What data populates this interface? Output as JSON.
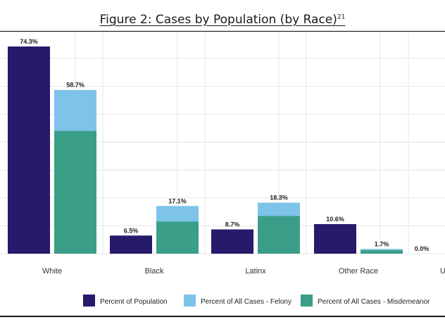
{
  "title": "Figure 2: Cases by Population (by Race)",
  "title_footnote": "21",
  "chart_data": {
    "type": "bar",
    "layout": "grouped-with-stacked-overlay",
    "grid": true,
    "legend_position": "bottom",
    "ylim": [
      0,
      80
    ],
    "categories": [
      "White",
      "Black",
      "Latinx",
      "Other Race",
      "Un"
    ],
    "series": [
      {
        "name": "Percent of Population",
        "color": "#261a6b",
        "values": [
          74.3,
          6.5,
          8.7,
          10.6,
          0.0
        ],
        "labels": [
          "74.3%",
          "6.5%",
          "8.7%",
          "10.6%",
          "0.0%"
        ]
      },
      {
        "name": "Percent of All Cases - Felony",
        "color": "#7dc3ea",
        "values": [
          58.7,
          17.1,
          18.3,
          1.7,
          null
        ],
        "labels": [
          "58.7%",
          "17.1%",
          "18.3%",
          "1.7%",
          ""
        ]
      },
      {
        "name": "Percent of All Cases - Misdemeanor",
        "color": "#3a9e88",
        "values": [
          44.0,
          11.5,
          13.5,
          1.2,
          null
        ]
      }
    ]
  }
}
